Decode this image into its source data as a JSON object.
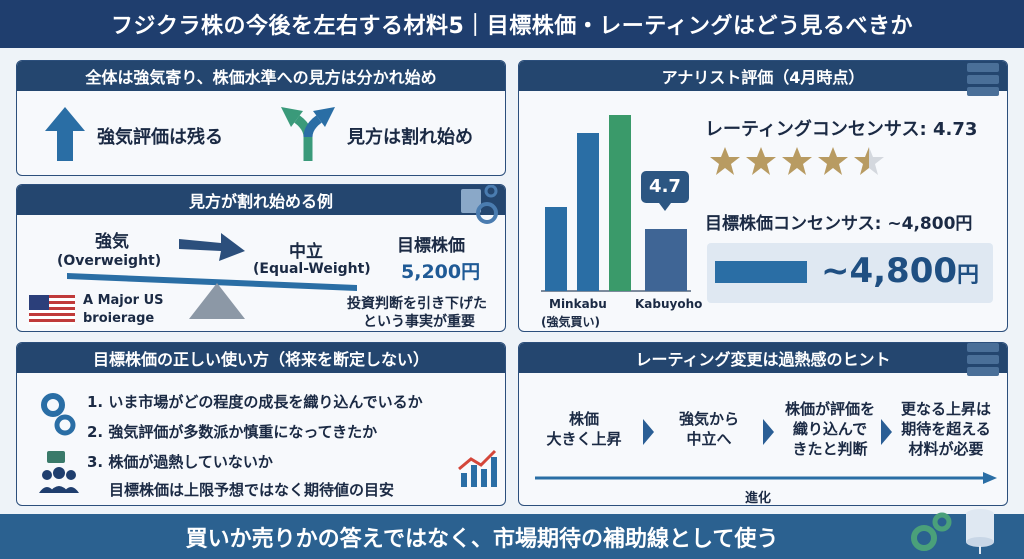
{
  "title": "フジクラ株の今後を左右する材料5｜目標株価・レーティングはどう見るべきか",
  "panel1": {
    "heading": "全体は強気寄り、株価水準への見方は分かれ始め",
    "item1": "強気評価は残る",
    "item2": "見方は割れ始め",
    "colors": {
      "up_arrow": "#2a6ea5",
      "split_arrow": "#3a9a7a"
    }
  },
  "panel2": {
    "heading": "見方が割れ始める例",
    "from_label": "強気",
    "from_sub": "(Overweight)",
    "to_label": "中立",
    "to_sub": "(Equal-Weight)",
    "target_label": "目標株価",
    "target_value": "5,200円",
    "broker_line1": "A Major US",
    "broker_line2": "broierage",
    "note_line1": "投資判断を引き下げた",
    "note_line2": "という事実が重要"
  },
  "panel3": {
    "heading": "アナリスト評価（4月時点）",
    "rating_consensus": "レーティングコンセンサス: 4.73",
    "target_consensus": "目標株価コンセンサス: ~4,800円",
    "big_value": "~4,800",
    "big_unit": "円",
    "badge": "4.7",
    "label_minkabu": "Minkabu",
    "label_minkabu_sub": "(強気買い)",
    "label_kabuyoho": "Kabuyoho",
    "stars": 4.5,
    "colors": {
      "star": "#b89b62",
      "bar_blue": "#2a6ea5",
      "bar_green": "#3a9a6a",
      "bar_slate": "#3f6595"
    }
  },
  "panel4": {
    "heading": "目標株価の正しい使い方（将来を断定しない）",
    "items": [
      "1. いま市場がどの程度の成長を織り込んでいるか",
      "2.  強気評価が多数派か慎重になってきたか",
      "3. 株価が過熱していないか"
    ],
    "note": "目標株価は上限予想ではなく期待値の目安"
  },
  "panel5": {
    "heading": "レーティング変更は過熱感のヒント",
    "steps": [
      {
        "line1": "株価",
        "line2": "大きく上昇",
        "line3": ""
      },
      {
        "line1": "強気から",
        "line2": "中立へ",
        "line3": ""
      },
      {
        "line1": "株価が評価を",
        "line2": "織り込んで",
        "line3": "きたと判断"
      },
      {
        "line1": "更なる上昇は",
        "line2": "期待を超える",
        "line3": "材料が必要"
      }
    ],
    "axis_label": "進化"
  },
  "footer": "買いか売りかの答えではなく、市場期待の補助線として使う"
}
